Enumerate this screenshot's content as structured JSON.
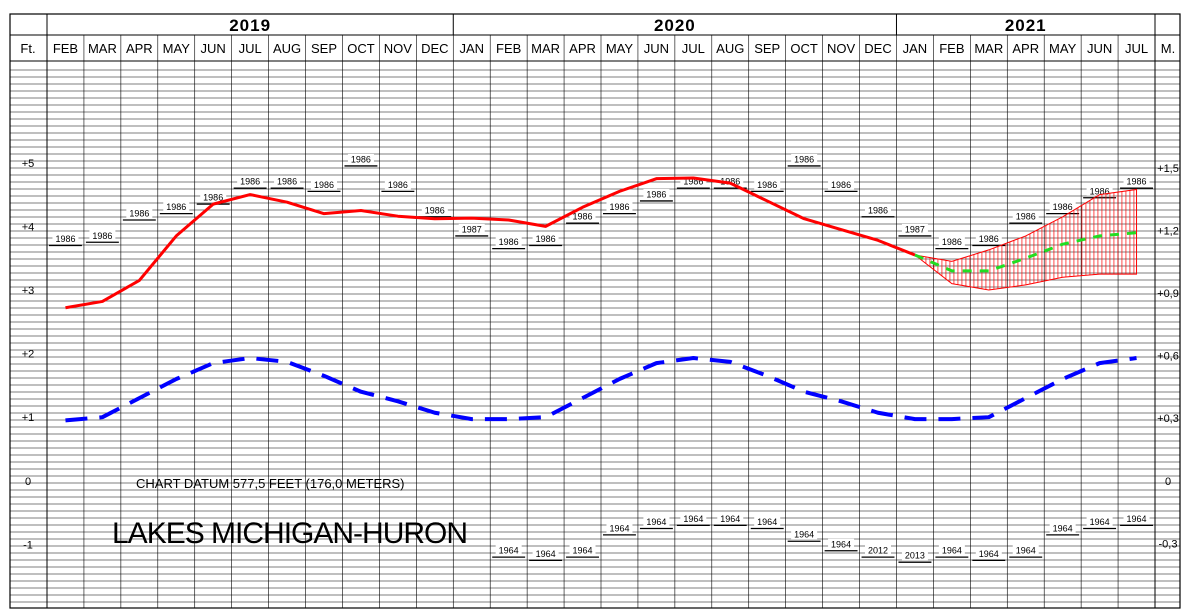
{
  "chart_data": {
    "type": "line",
    "title": "LAKES MICHIGAN-HURON",
    "datum_note": "CHART DATUM 577,5 FEET (176,0 METERS)",
    "years": [
      {
        "label": "2019",
        "from": 0,
        "to": 10
      },
      {
        "label": "2020",
        "from": 11,
        "to": 22
      },
      {
        "label": "2021",
        "from": 23,
        "to": 29
      }
    ],
    "left_unit": "Ft.",
    "right_unit": "M.",
    "months": [
      "FEB",
      "MAR",
      "APR",
      "MAY",
      "JUN",
      "JUL",
      "AUG",
      "SEP",
      "OCT",
      "NOV",
      "DEC",
      "JAN",
      "FEB",
      "MAR",
      "APR",
      "MAY",
      "JUN",
      "JUL",
      "AUG",
      "SEP",
      "OCT",
      "NOV",
      "DEC",
      "JAN",
      "FEB",
      "MAR",
      "APR",
      "MAY",
      "JUN",
      "JUL"
    ],
    "ylim_ft": [
      -2,
      6.6
    ],
    "left_ticks": [
      {
        "v": 5,
        "label": "+5"
      },
      {
        "v": 4,
        "label": "+4"
      },
      {
        "v": 3,
        "label": "+3"
      },
      {
        "v": 2,
        "label": "+2"
      },
      {
        "v": 1,
        "label": "+1"
      },
      {
        "v": 0,
        "label": "0"
      },
      {
        "v": -1,
        "label": "-1"
      }
    ],
    "right_ticks": [
      {
        "v": 4.921,
        "label": "+1,5"
      },
      {
        "v": 3.937,
        "label": "+1,2"
      },
      {
        "v": 2.953,
        "label": "+0,9"
      },
      {
        "v": 1.969,
        "label": "+0,6"
      },
      {
        "v": 0.984,
        "label": "+0,3"
      },
      {
        "v": 0,
        "label": "0"
      },
      {
        "v": -0.984,
        "label": "-0,3"
      }
    ],
    "series": [
      {
        "role": "recorded",
        "color": "#ff0000",
        "style": "solid",
        "values": [
          2.72,
          2.82,
          3.15,
          3.85,
          4.35,
          4.5,
          4.38,
          4.2,
          4.25,
          4.16,
          4.12,
          4.13,
          4.1,
          4.0,
          4.3,
          4.55,
          4.75,
          4.76,
          4.68,
          4.4,
          4.12,
          3.95,
          3.78,
          3.55,
          null,
          null,
          null,
          null,
          null,
          null
        ]
      },
      {
        "role": "long-term average",
        "color": "#0000ff",
        "style": "dashed",
        "values": [
          0.95,
          1.0,
          1.3,
          1.6,
          1.85,
          1.93,
          1.87,
          1.65,
          1.4,
          1.25,
          1.07,
          0.97,
          0.97,
          1.0,
          1.3,
          1.6,
          1.85,
          1.93,
          1.87,
          1.65,
          1.4,
          1.25,
          1.07,
          0.97,
          0.97,
          1.0,
          1.3,
          1.6,
          1.85,
          1.93
        ]
      },
      {
        "role": "forecast",
        "color": "#22dd22",
        "style": "dashed",
        "values": [
          null,
          null,
          null,
          null,
          null,
          null,
          null,
          null,
          null,
          null,
          null,
          null,
          null,
          null,
          null,
          null,
          null,
          null,
          null,
          null,
          null,
          null,
          null,
          3.55,
          3.3,
          3.3,
          3.5,
          3.72,
          3.85,
          3.9
        ]
      }
    ],
    "forecast_band": {
      "color": "#ff0000",
      "upper": [
        null,
        null,
        null,
        null,
        null,
        null,
        null,
        null,
        null,
        null,
        null,
        null,
        null,
        null,
        null,
        null,
        null,
        null,
        null,
        null,
        null,
        null,
        null,
        3.55,
        3.45,
        3.63,
        3.85,
        4.15,
        4.5,
        4.58
      ],
      "lower": [
        null,
        null,
        null,
        null,
        null,
        null,
        null,
        null,
        null,
        null,
        null,
        null,
        null,
        null,
        null,
        null,
        null,
        null,
        null,
        null,
        null,
        null,
        null,
        3.55,
        3.1,
        3.0,
        3.08,
        3.2,
        3.25,
        3.25
      ]
    },
    "record_high": [
      {
        "v": 3.7,
        "label": "1986"
      },
      {
        "v": 3.75,
        "label": "1986"
      },
      {
        "v": 4.1,
        "label": "1986"
      },
      {
        "v": 4.2,
        "label": "1986"
      },
      {
        "v": 4.35,
        "label": "1986"
      },
      {
        "v": 4.6,
        "label": "1986"
      },
      {
        "v": 4.6,
        "label": "1986"
      },
      {
        "v": 4.55,
        "label": "1986"
      },
      {
        "v": 4.95,
        "label": "1986"
      },
      {
        "v": 4.55,
        "label": "1986"
      },
      {
        "v": 4.15,
        "label": "1986"
      },
      {
        "v": 3.85,
        "label": "1987"
      },
      {
        "v": 3.65,
        "label": "1986"
      },
      {
        "v": 3.7,
        "label": "1986"
      },
      {
        "v": 4.05,
        "label": "1986"
      },
      {
        "v": 4.2,
        "label": "1986"
      },
      {
        "v": 4.4,
        "label": "1986"
      },
      {
        "v": 4.6,
        "label": "1986"
      },
      {
        "v": 4.6,
        "label": "1986"
      },
      {
        "v": 4.55,
        "label": "1986"
      },
      {
        "v": 4.95,
        "label": "1986"
      },
      {
        "v": 4.55,
        "label": "1986"
      },
      {
        "v": 4.15,
        "label": "1986"
      },
      {
        "v": 3.85,
        "label": "1987"
      },
      {
        "v": 3.65,
        "label": "1986"
      },
      {
        "v": 3.7,
        "label": "1986"
      },
      {
        "v": 4.05,
        "label": "1986"
      },
      {
        "v": 4.2,
        "label": "1986"
      },
      {
        "v": 4.45,
        "label": "1986"
      },
      {
        "v": 4.6,
        "label": "1986"
      }
    ],
    "record_low": [
      null,
      null,
      null,
      null,
      null,
      null,
      null,
      null,
      null,
      null,
      null,
      null,
      {
        "v": -1.2,
        "label": "1964"
      },
      {
        "v": -1.25,
        "label": "1964"
      },
      {
        "v": -1.2,
        "label": "1964"
      },
      {
        "v": -0.85,
        "label": "1964"
      },
      {
        "v": -0.75,
        "label": "1964"
      },
      {
        "v": -0.7,
        "label": "1964"
      },
      {
        "v": -0.7,
        "label": "1964"
      },
      {
        "v": -0.75,
        "label": "1964"
      },
      {
        "v": -0.95,
        "label": "1964"
      },
      {
        "v": -1.1,
        "label": "1964"
      },
      {
        "v": -1.2,
        "label": "2012"
      },
      {
        "v": -1.28,
        "label": "2013"
      },
      {
        "v": -1.2,
        "label": "1964"
      },
      {
        "v": -1.25,
        "label": "1964"
      },
      {
        "v": -1.2,
        "label": "1964"
      },
      {
        "v": -0.85,
        "label": "1964"
      },
      {
        "v": -0.75,
        "label": "1964"
      },
      {
        "v": -0.7,
        "label": "1964"
      }
    ],
    "grid": true
  }
}
